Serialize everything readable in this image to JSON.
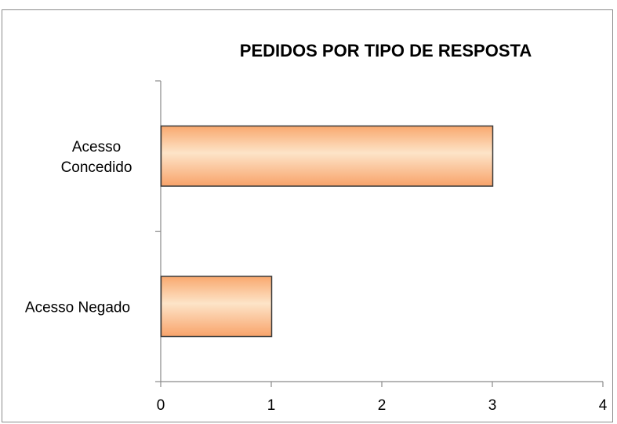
{
  "chart_data": {
    "type": "bar",
    "orientation": "horizontal",
    "title": "PEDIDOS POR TIPO DE RESPOSTA",
    "categories": [
      "Acesso Concedido",
      "Acesso Negado"
    ],
    "category_label_lines": [
      [
        "Acesso",
        "Concedido"
      ],
      [
        "Acesso Negado"
      ]
    ],
    "values": [
      3,
      1
    ],
    "xlim": [
      0,
      4
    ],
    "x_ticks": [
      0,
      1,
      2,
      3,
      4
    ],
    "xlabel": "",
    "ylabel": "",
    "grid": false,
    "legend": "none",
    "bar_colors": {
      "edge": "#f9a86e",
      "center": "#fde4c8",
      "outline": "#3a3a3a"
    }
  }
}
